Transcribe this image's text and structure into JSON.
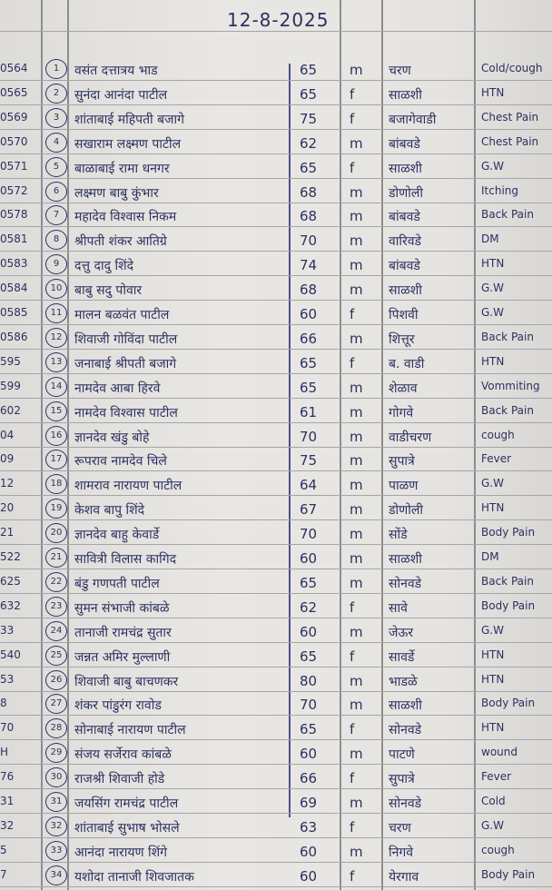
{
  "register": {
    "date": "12-8-2025",
    "rows": [
      {
        "id": "0564",
        "sn": "1",
        "name": "वसंत दत्तात्रय भाड",
        "age": "65",
        "sex": "m",
        "village": "चरण",
        "diagnosis": "Cold/cough"
      },
      {
        "id": "0565",
        "sn": "2",
        "name": "सुनंदा आनंदा पाटील",
        "age": "65",
        "sex": "f",
        "village": "साळशी",
        "diagnosis": "HTN"
      },
      {
        "id": "0569",
        "sn": "3",
        "name": "शांताबाई महिपती बजागे",
        "age": "75",
        "sex": "f",
        "village": "बजागेवाडी",
        "diagnosis": "Chest Pain"
      },
      {
        "id": "0570",
        "sn": "4",
        "name": "सखाराम लक्ष्मण पाटील",
        "age": "62",
        "sex": "m",
        "village": "बांबवडे",
        "diagnosis": "Chest Pain"
      },
      {
        "id": "0571",
        "sn": "5",
        "name": "बाळाबाई रामा धनगर",
        "age": "65",
        "sex": "f",
        "village": "साळशी",
        "diagnosis": "G.W"
      },
      {
        "id": "0572",
        "sn": "6",
        "name": "लक्ष्मण बाबु कुंभार",
        "age": "68",
        "sex": "m",
        "village": "डोणोली",
        "diagnosis": "Itching"
      },
      {
        "id": "0578",
        "sn": "7",
        "name": "महादेव विश्वास निकम",
        "age": "68",
        "sex": "m",
        "village": "बांबवडे",
        "diagnosis": "Back Pain"
      },
      {
        "id": "0581",
        "sn": "8",
        "name": "श्रीपती शंकर आतिग्रे",
        "age": "70",
        "sex": "m",
        "village": "वारिवडे",
        "diagnosis": "DM"
      },
      {
        "id": "0583",
        "sn": "9",
        "name": "दत्तु दादु शिंदे",
        "age": "74",
        "sex": "m",
        "village": "बांबवडे",
        "diagnosis": "HTN"
      },
      {
        "id": "0584",
        "sn": "10",
        "name": "बाबु सदु पोवार",
        "age": "68",
        "sex": "m",
        "village": "साळशी",
        "diagnosis": "G.W"
      },
      {
        "id": "0585",
        "sn": "11",
        "name": "मालन बळवंत पाटील",
        "age": "60",
        "sex": "f",
        "village": "पिशवी",
        "diagnosis": "G.W"
      },
      {
        "id": "0586",
        "sn": "12",
        "name": "शिवाजी गोविंदा पाटील",
        "age": "66",
        "sex": "m",
        "village": "शित्तूर",
        "diagnosis": "Back Pain"
      },
      {
        "id": "595",
        "sn": "13",
        "name": "जनाबाई श्रीपती बजागे",
        "age": "65",
        "sex": "f",
        "village": "ब. वाडी",
        "diagnosis": "HTN"
      },
      {
        "id": "599",
        "sn": "14",
        "name": "नामदेव आबा हिरवे",
        "age": "65",
        "sex": "m",
        "village": "शेळाव",
        "diagnosis": "Vommiting"
      },
      {
        "id": "602",
        "sn": "15",
        "name": "नामदेव विश्वास पाटील",
        "age": "61",
        "sex": "m",
        "village": "गोगवे",
        "diagnosis": "Back Pain"
      },
      {
        "id": "04",
        "sn": "16",
        "name": "ज्ञानदेव खंडु बोहे",
        "age": "70",
        "sex": "m",
        "village": "वाडीचरण",
        "diagnosis": "cough"
      },
      {
        "id": "09",
        "sn": "17",
        "name": "रूपराव नामदेव चिले",
        "age": "75",
        "sex": "m",
        "village": "सुपात्रे",
        "diagnosis": "Fever"
      },
      {
        "id": "12",
        "sn": "18",
        "name": "शामराव नारायण पाटील",
        "age": "64",
        "sex": "m",
        "village": "पाळण",
        "diagnosis": "G.W"
      },
      {
        "id": "20",
        "sn": "19",
        "name": "केशव बापु शिंदे",
        "age": "67",
        "sex": "m",
        "village": "डोणोली",
        "diagnosis": "HTN"
      },
      {
        "id": "21",
        "sn": "20",
        "name": "ज्ञानदेव बाहु केवार्डे",
        "age": "70",
        "sex": "m",
        "village": "सोंडे",
        "diagnosis": "Body Pain"
      },
      {
        "id": "522",
        "sn": "21",
        "name": "सावित्री विलास कागिद",
        "age": "60",
        "sex": "m",
        "village": "साळशी",
        "diagnosis": "DM"
      },
      {
        "id": "625",
        "sn": "22",
        "name": "बंडु गणपती पाटील",
        "age": "65",
        "sex": "m",
        "village": "सोनवडे",
        "diagnosis": "Back Pain"
      },
      {
        "id": "632",
        "sn": "23",
        "name": "सुमन संभाजी कांबळे",
        "age": "62",
        "sex": "f",
        "village": "सावे",
        "diagnosis": "Body Pain"
      },
      {
        "id": "33",
        "sn": "24",
        "name": "तानाजी रामचंद्र सुतार",
        "age": "60",
        "sex": "m",
        "village": "जेऊर",
        "diagnosis": "G.W"
      },
      {
        "id": "540",
        "sn": "25",
        "name": "जन्नत अमिर मुल्लाणी",
        "age": "65",
        "sex": "f",
        "village": "सावर्डे",
        "diagnosis": "HTN"
      },
      {
        "id": "53",
        "sn": "26",
        "name": "शिवाजी बाबु बाचणकर",
        "age": "80",
        "sex": "m",
        "village": "भाडळे",
        "diagnosis": "HTN"
      },
      {
        "id": "8",
        "sn": "27",
        "name": "शंकर पांडुरंग रावोड",
        "age": "70",
        "sex": "m",
        "village": "साळशी",
        "diagnosis": "Body Pain"
      },
      {
        "id": "70",
        "sn": "28",
        "name": "सोनाबाई नारायण पाटील",
        "age": "65",
        "sex": "f",
        "village": "सोनवडे",
        "diagnosis": "HTN"
      },
      {
        "id": "H",
        "sn": "29",
        "name": "संजय सर्जेराव कांबळे",
        "age": "60",
        "sex": "m",
        "village": "पाटणे",
        "diagnosis": "wound"
      },
      {
        "id": "76",
        "sn": "30",
        "name": "राजश्री शिवाजी होडे",
        "age": "66",
        "sex": "f",
        "village": "सुपात्रे",
        "diagnosis": "Fever"
      },
      {
        "id": "31",
        "sn": "31",
        "name": "जयसिंग रामचंद्र पाटील",
        "age": "69",
        "sex": "m",
        "village": "सोनवडे",
        "diagnosis": "Cold"
      },
      {
        "id": "32",
        "sn": "32",
        "name": "शांताबाई सुभाष भोसले",
        "age": "63",
        "sex": "f",
        "village": "चरण",
        "diagnosis": "G.W"
      },
      {
        "id": "5",
        "sn": "33",
        "name": "आनंदा नारायण शिंगे",
        "age": "60",
        "sex": "m",
        "village": "निगवे",
        "diagnosis": "cough"
      },
      {
        "id": "7",
        "sn": "34",
        "name": "यशोदा तानाजी शिवजातक",
        "age": "60",
        "sex": "f",
        "village": "येरगाव",
        "diagnosis": "Body Pain"
      }
    ]
  }
}
